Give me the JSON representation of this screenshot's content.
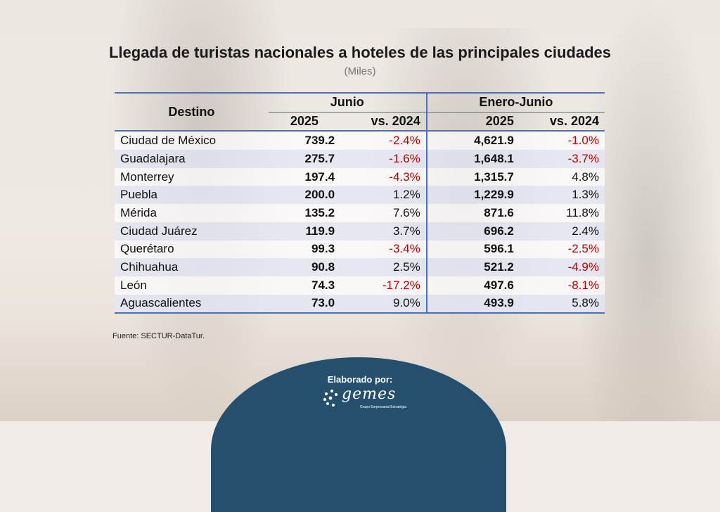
{
  "title": "Llegada de turistas nacionales a hoteles de las principales ciudades",
  "subtitle": "(Miles)",
  "headers": {
    "destino": "Destino",
    "group1": "Junio",
    "group2": "Enero-Junio",
    "year": "2025",
    "vs": "vs. 2024"
  },
  "chart_data": {
    "type": "table",
    "title": "Llegada de turistas nacionales a hoteles de las principales ciudades",
    "subtitle": "(Miles)",
    "columns": [
      "Destino",
      "Junio 2025",
      "Junio vs. 2024",
      "Enero-Junio 2025",
      "Enero-Junio vs. 2024"
    ],
    "rows": [
      {
        "city": "Ciudad de México",
        "jun_2025": "739.2",
        "jun_vs": "-2.4%",
        "ytd_2025": "4,621.9",
        "ytd_vs": "-1.0%"
      },
      {
        "city": "Guadalajara",
        "jun_2025": "275.7",
        "jun_vs": "-1.6%",
        "ytd_2025": "1,648.1",
        "ytd_vs": "-3.7%"
      },
      {
        "city": "Monterrey",
        "jun_2025": "197.4",
        "jun_vs": "-4.3%",
        "ytd_2025": "1,315.7",
        "ytd_vs": "4.8%"
      },
      {
        "city": "Puebla",
        "jun_2025": "200.0",
        "jun_vs": "1.2%",
        "ytd_2025": "1,229.9",
        "ytd_vs": "1.3%"
      },
      {
        "city": "Mérida",
        "jun_2025": "135.2",
        "jun_vs": "7.6%",
        "ytd_2025": "871.6",
        "ytd_vs": "11.8%"
      },
      {
        "city": "Ciudad Juárez",
        "jun_2025": "119.9",
        "jun_vs": "3.7%",
        "ytd_2025": "696.2",
        "ytd_vs": "2.4%"
      },
      {
        "city": "Querétaro",
        "jun_2025": "99.3",
        "jun_vs": "-3.4%",
        "ytd_2025": "596.1",
        "ytd_vs": "-2.5%"
      },
      {
        "city": "Chihuahua",
        "jun_2025": "90.8",
        "jun_vs": "2.5%",
        "ytd_2025": "521.2",
        "ytd_vs": "-4.9%"
      },
      {
        "city": "León",
        "jun_2025": "74.3",
        "jun_vs": "-17.2%",
        "ytd_2025": "497.6",
        "ytd_vs": "-8.1%"
      },
      {
        "city": "Aguascalientes",
        "jun_2025": "73.0",
        "jun_vs": "9.0%",
        "ytd_2025": "493.9",
        "ytd_vs": "5.8%"
      }
    ]
  },
  "colors": {
    "negative": "#c00000",
    "rule": "#4472c4",
    "badge": "#24506e"
  },
  "source": "Fuente: SECTUR-DataTur.",
  "footer": {
    "label": "Elaborado por:",
    "logo_text": "gemes",
    "logo_tagline": "Grupo Empresarial Estratégia"
  }
}
